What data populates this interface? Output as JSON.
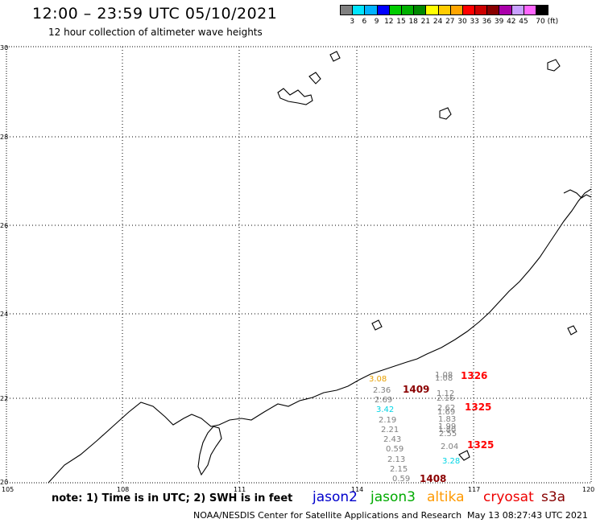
{
  "header": {
    "title": "12:00 – 23:59 UTC 05/10/2021",
    "subtitle": "12 hour collection of altimeter wave heights"
  },
  "scale": {
    "colors": [
      "#808080",
      "#00e5ff",
      "#00b2ff",
      "#0000ff",
      "#00cc00",
      "#00b000",
      "#008800",
      "#ffff00",
      "#ffcc00",
      "#ffa500",
      "#ff0000",
      "#cc0000",
      "#880000",
      "#aa00aa",
      "#c8a0ff",
      "#ff66ff",
      "#000000"
    ],
    "labels": [
      "3",
      "6",
      "9",
      "12",
      "15",
      "18",
      "21",
      "24",
      "27",
      "30",
      "33",
      "36",
      "39",
      "42",
      "45",
      "70 (ft)"
    ]
  },
  "axes": {
    "lon_labels": [
      "105",
      "108",
      "111",
      "114",
      "117",
      "120"
    ],
    "lat_labels": [
      "30",
      "28",
      "26",
      "24",
      "22",
      "20"
    ]
  },
  "readings": [
    {
      "text": "3.08",
      "color": "#e8a000"
    },
    {
      "text": "2.36",
      "color": "#808080"
    },
    {
      "text": "2.69",
      "color": "#808080"
    },
    {
      "text": "3.42",
      "color": "#00d5e5"
    },
    {
      "text": "2.19",
      "color": "#808080"
    },
    {
      "text": "2.21",
      "color": "#808080"
    },
    {
      "text": "2.43",
      "color": "#808080"
    },
    {
      "text": "0.59",
      "color": "#808080"
    },
    {
      "text": "2.13",
      "color": "#808080"
    },
    {
      "text": "2.15",
      "color": "#808080"
    },
    {
      "text": "0.59",
      "color": "#808080"
    },
    {
      "text": "1.08",
      "color": "#808080"
    },
    {
      "text": "1.08",
      "color": "#808080"
    },
    {
      "text": "1.12",
      "color": "#808080"
    },
    {
      "text": "2.16",
      "color": "#808080"
    },
    {
      "text": "2.62",
      "color": "#808080"
    },
    {
      "text": "1.69",
      "color": "#808080"
    },
    {
      "text": "1.83",
      "color": "#808080"
    },
    {
      "text": "1.99",
      "color": "#808080"
    },
    {
      "text": "1.80",
      "color": "#808080"
    },
    {
      "text": "2.55",
      "color": "#808080"
    },
    {
      "text": "2.04",
      "color": "#808080"
    },
    {
      "text": "3.28",
      "color": "#00d5e5"
    }
  ],
  "passes": [
    {
      "text": "1326",
      "color": "#ff0000"
    },
    {
      "text": "1409",
      "color": "#8b0000"
    },
    {
      "text": "1325",
      "color": "#ff0000"
    },
    {
      "text": "1325",
      "color": "#ff0000"
    },
    {
      "text": "1408",
      "color": "#8b0000"
    }
  ],
  "footer": {
    "note": "note: 1) Time is in UTC; 2) SWH is in feet",
    "legend": [
      {
        "text": "jason2",
        "color": "#0000cc"
      },
      {
        "text": "jason3",
        "color": "#00aa00"
      },
      {
        "text": "altika",
        "color": "#ff9900"
      },
      {
        "text": "cryosat",
        "color": "#ee0000"
      },
      {
        "text": "s3a",
        "color": "#880000"
      }
    ],
    "credit": "NOAA/NESDIS Center for Satellite Applications and Research",
    "timestamp": "May 13 08:27:43 UTC 2021"
  }
}
